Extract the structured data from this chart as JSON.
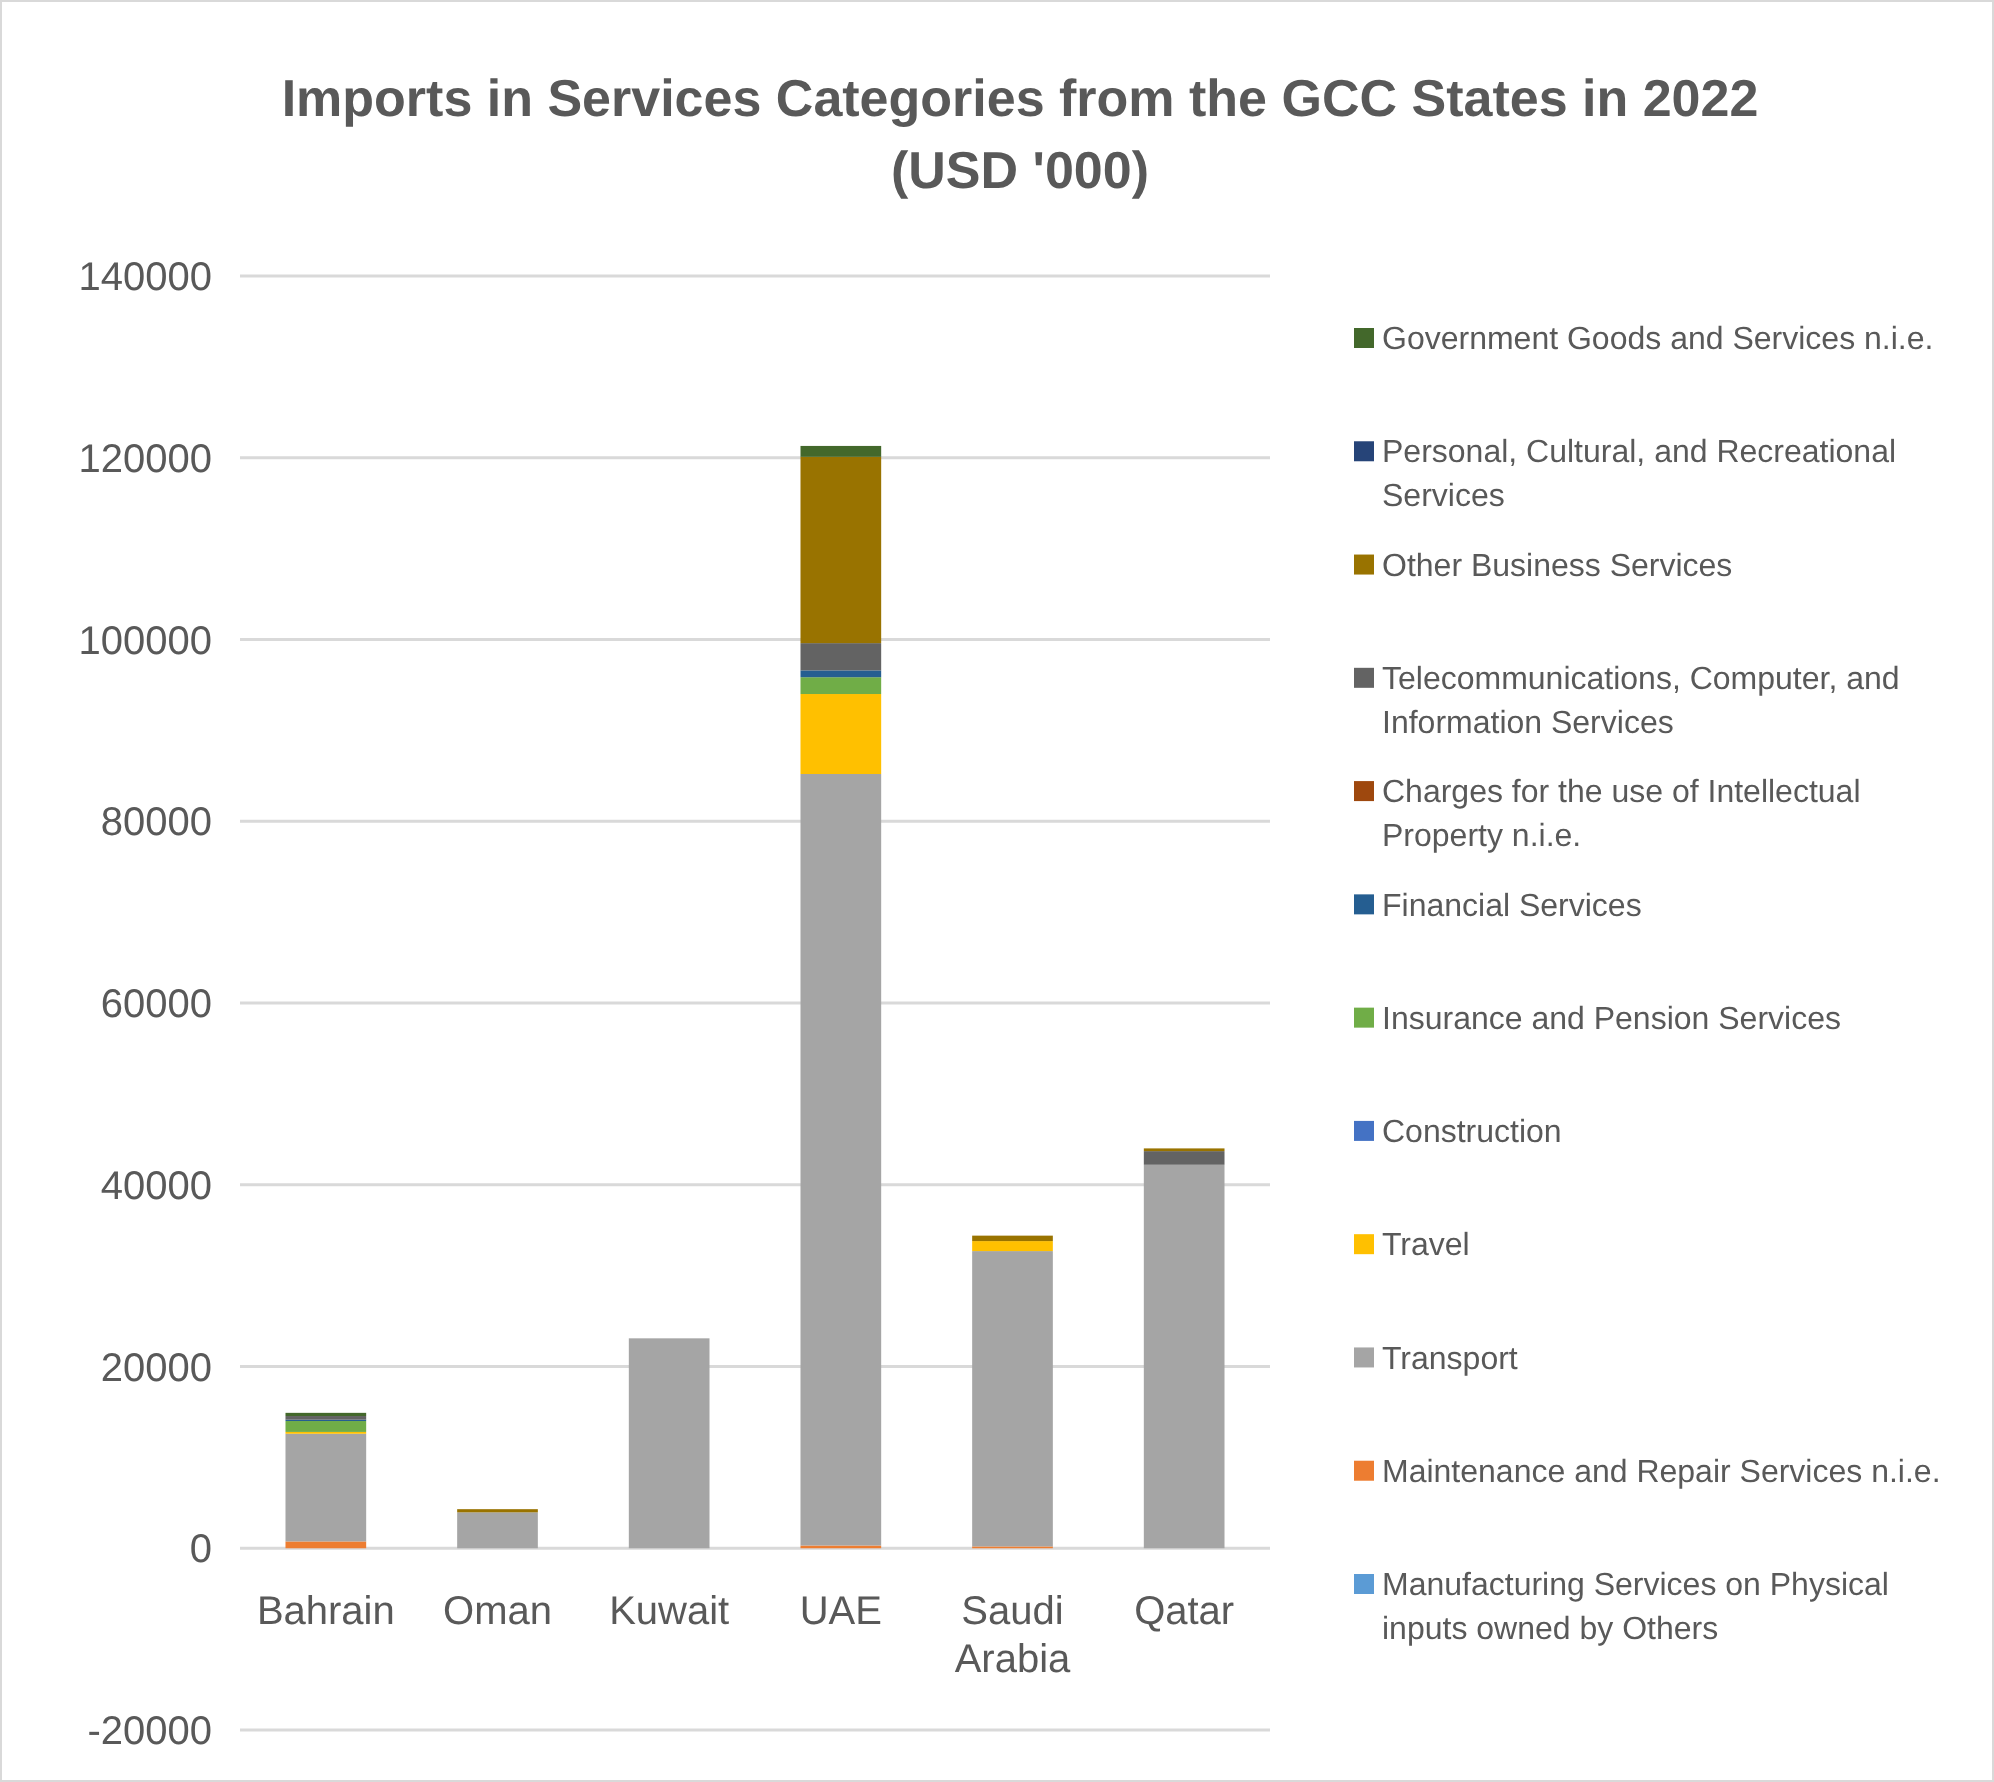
{
  "chart_data": {
    "type": "bar",
    "title": "Imports in Services Categories from the GCC States in 2022 (USD '000)",
    "categories": [
      "Bahrain",
      "Oman",
      "Kuwait",
      "UAE",
      "Saudi Arabia",
      "Qatar"
    ],
    "stacked": true,
    "ylim": [
      -20000,
      140000
    ],
    "yticks": [
      -20000,
      0,
      20000,
      40000,
      60000,
      80000,
      100000,
      120000,
      140000
    ],
    "grid": "y",
    "legend": "right",
    "series": [
      {
        "name": "Manufacturing Services on Physical inputs owned by Others",
        "color": "#5b9bd5",
        "values": [
          0,
          0,
          0,
          0,
          0,
          0
        ]
      },
      {
        "name": "Maintenance and Repair Services n.i.e.",
        "color": "#ed7d31",
        "values": [
          750,
          0,
          0,
          300,
          200,
          0
        ]
      },
      {
        "name": "Transport",
        "color": "#a5a5a5",
        "values": [
          11850,
          3950,
          23100,
          84900,
          32500,
          42200
        ]
      },
      {
        "name": "Travel",
        "color": "#ffc000",
        "values": [
          200,
          0,
          0,
          8800,
          1100,
          0
        ]
      },
      {
        "name": "Construction",
        "color": "#4472c4",
        "values": [
          0,
          0,
          0,
          0,
          0,
          0
        ]
      },
      {
        "name": "Insurance and Pension Services",
        "color": "#70ad47",
        "values": [
          1200,
          0,
          0,
          1850,
          0,
          0
        ]
      },
      {
        "name": "Financial Services",
        "color": "#255e91",
        "values": [
          150,
          0,
          0,
          750,
          0,
          0
        ]
      },
      {
        "name": "Charges for the use of Intellectual Property n.i.e.",
        "color": "#9e480e",
        "values": [
          0,
          0,
          0,
          0,
          0,
          0
        ]
      },
      {
        "name": "Telecommunications, Computer, and Information Services",
        "color": "#636363",
        "values": [
          400,
          0,
          0,
          3000,
          0,
          1500
        ]
      },
      {
        "name": "Other Business Services",
        "color": "#997300",
        "values": [
          0,
          350,
          0,
          20500,
          600,
          300
        ]
      },
      {
        "name": "Personal, Cultural, and Recreational Services",
        "color": "#264478",
        "values": [
          0,
          0,
          0,
          0,
          0,
          0
        ]
      },
      {
        "name": "Government Goods and Services n.i.e.",
        "color": "#43682b",
        "values": [
          350,
          0,
          0,
          1200,
          0,
          0
        ]
      }
    ]
  }
}
